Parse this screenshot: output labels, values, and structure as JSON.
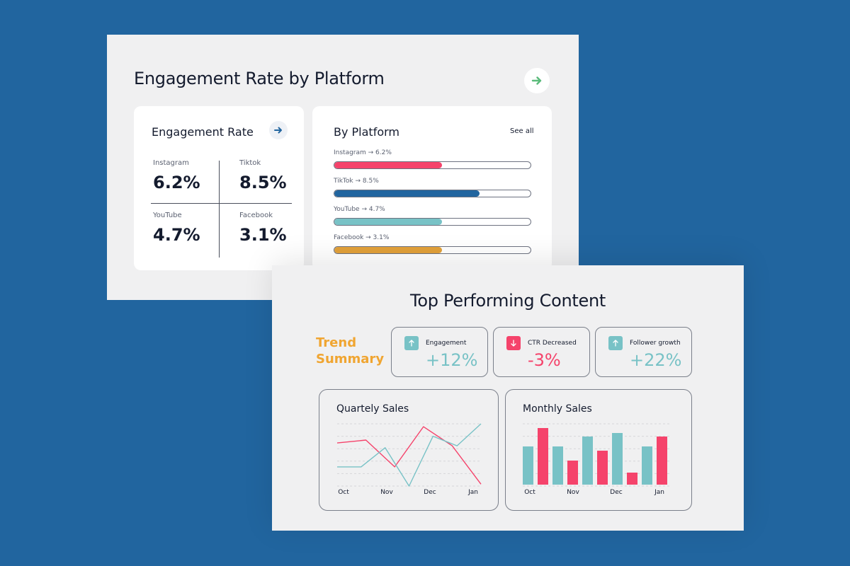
{
  "colors": {
    "background": "#21659f",
    "panel": "#f0f0f1",
    "text": "#141b2e",
    "pink": "#f5436b",
    "blue": "#21659f",
    "teal": "#78c2c6",
    "orange": "#e2a13a",
    "green": "#5bbb7b",
    "trend_orange": "#f0a531"
  },
  "engagement_panel": {
    "title": "Engagement Rate by Platform",
    "arrow_icon": "arrow-right-icon",
    "engagement_card": {
      "title": "Engagement Rate",
      "arrow_icon": "arrow-right-icon",
      "cells": [
        {
          "label": "Instagram",
          "value": "6.2%"
        },
        {
          "label": "Tiktok",
          "value": "8.5%"
        },
        {
          "label": "YouTube",
          "value": "4.7%"
        },
        {
          "label": "Facebook",
          "value": "3.1%"
        }
      ]
    },
    "platform_card": {
      "title": "By Platform",
      "see_all": "See all",
      "rows": [
        {
          "label": "Instagram → 6.2%",
          "fill": 0.55,
          "color": "#f5436b"
        },
        {
          "label": "TikTok → 8.5%",
          "fill": 0.74,
          "color": "#21659f"
        },
        {
          "label": "YouTube → 4.7%",
          "fill": 0.55,
          "color": "#78c2c6"
        },
        {
          "label": "Facebook → 3.1%",
          "fill": 0.55,
          "color": "#e2a13a"
        }
      ]
    }
  },
  "content_panel": {
    "title": "Top Performing Content",
    "trend_summary": [
      "Trend",
      "Summary"
    ],
    "trends": [
      {
        "name": "Engagement",
        "value": "+12%",
        "direction": "up",
        "icon": "arrow-up-icon",
        "color": "#78c2c6"
      },
      {
        "name": "CTR Decreased",
        "value": "-3%",
        "direction": "down",
        "icon": "arrow-down-icon",
        "color": "#f5436b"
      },
      {
        "name": "Follower growth",
        "value": "+22%",
        "direction": "up",
        "icon": "arrow-up-icon",
        "color": "#78c2c6"
      }
    ]
  },
  "chart_data": [
    {
      "type": "line",
      "title": "Quartely Sales",
      "x_labels": [
        "Oct",
        "Nov",
        "Dec",
        "Jan"
      ],
      "grid": true,
      "series": [
        {
          "color": "#f5436b",
          "values": [
            45,
            48,
            20,
            62,
            42,
            2
          ]
        },
        {
          "color": "#78c2c6",
          "values": [
            20,
            20,
            40,
            0,
            52,
            42,
            65
          ]
        }
      ]
    },
    {
      "type": "bar",
      "title": "Monthly Sales",
      "x_labels": [
        "Oct",
        "Nov",
        "Dec",
        "Jan"
      ],
      "grid": true,
      "values": [
        54,
        80,
        54,
        34,
        68,
        48,
        73,
        17,
        54,
        68
      ],
      "colors": [
        "#78c2c6",
        "#f5436b",
        "#78c2c6",
        "#f5436b",
        "#78c2c6",
        "#f5436b",
        "#78c2c6",
        "#f5436b",
        "#78c2c6",
        "#f5436b"
      ]
    }
  ]
}
